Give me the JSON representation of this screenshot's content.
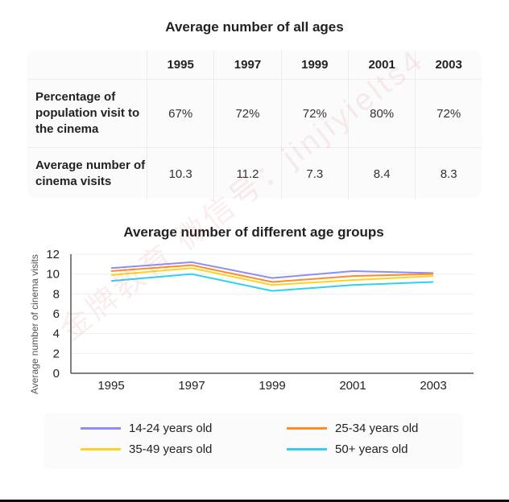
{
  "table": {
    "title": "Average number of all ages",
    "years": [
      "1995",
      "1997",
      "1999",
      "2001",
      "2003"
    ],
    "rows": [
      {
        "label": "Percentage of population visit to the cinema",
        "values": [
          "67%",
          "72%",
          "72%",
          "80%",
          "72%"
        ]
      },
      {
        "label": "Average number of cinema visits",
        "values": [
          "10.3",
          "11.2",
          "7.3",
          "8.4",
          "8.3"
        ]
      }
    ]
  },
  "chart_data": {
    "type": "line",
    "title": "Average number of different age groups",
    "ylabel": "Average number of cinema visits",
    "xlabel": "",
    "x": [
      "1995",
      "1997",
      "1999",
      "2001",
      "2003"
    ],
    "ylim": [
      0,
      12
    ],
    "yticks": [
      "0",
      "2",
      "4",
      "6",
      "8",
      "10",
      "12"
    ],
    "grid": "horizontal",
    "legend_position": "bottom",
    "series": [
      {
        "name": "14-24 years old",
        "color": "#8f8ef0",
        "values": [
          10.6,
          11.2,
          9.6,
          10.3,
          10.1
        ]
      },
      {
        "name": "25-34 years old",
        "color": "#ff8c2a",
        "values": [
          10.3,
          10.9,
          9.2,
          9.8,
          10.0
        ]
      },
      {
        "name": "35-49 years old",
        "color": "#ffd21c",
        "values": [
          9.9,
          10.6,
          8.9,
          9.4,
          9.8
        ]
      },
      {
        "name": "50+ years old",
        "color": "#2ed2f0",
        "values": [
          9.3,
          10.0,
          8.3,
          8.9,
          9.2
        ]
      }
    ]
  },
  "watermark": "金牌教育 微信号：jinjiyielts4"
}
